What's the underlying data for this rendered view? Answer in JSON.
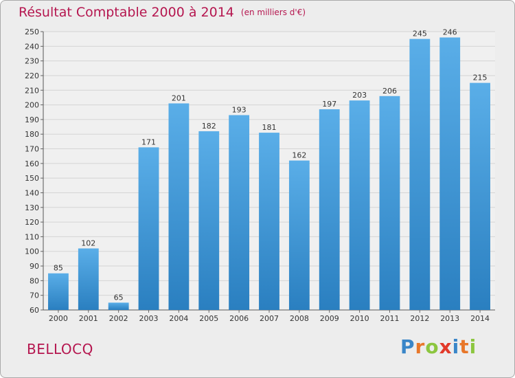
{
  "chart_data": {
    "type": "bar",
    "title": "Résultat Comptable 2000 à 2014",
    "subtitle": "(en milliers d'€)",
    "categories": [
      "2000",
      "2001",
      "2002",
      "2003",
      "2004",
      "2005",
      "2006",
      "2007",
      "2008",
      "2009",
      "2010",
      "2011",
      "2012",
      "2013",
      "2014"
    ],
    "values": [
      85,
      102,
      65,
      171,
      201,
      182,
      193,
      181,
      162,
      197,
      203,
      206,
      245,
      246,
      215
    ],
    "ylim": [
      60,
      250
    ],
    "yticks": [
      60,
      70,
      80,
      90,
      100,
      110,
      120,
      130,
      140,
      150,
      160,
      170,
      180,
      190,
      200,
      210,
      220,
      230,
      240,
      250
    ],
    "grid": true,
    "bar_color_top": "#5aaee8",
    "bar_color_bottom": "#2a7fc0"
  },
  "location": "BELLOCQ",
  "logo_text": "Proxiti",
  "colors": {
    "title": "#b5164f",
    "background": "#ededed",
    "grid": "#d4d4d4"
  }
}
